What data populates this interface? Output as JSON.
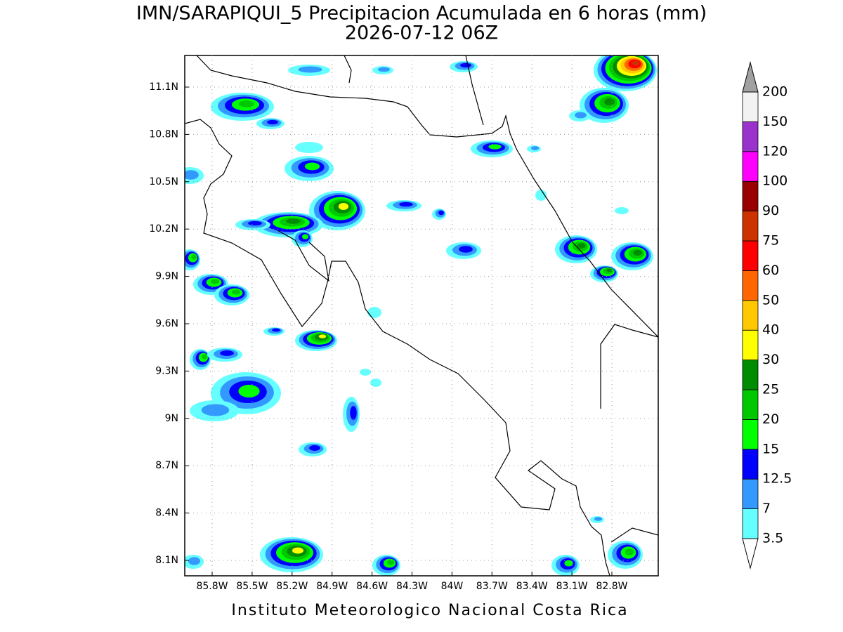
{
  "header": {
    "title": "IMN/SARAPIQUI_5 Precipitacion Acumulada en 6 horas (mm)",
    "subtitle": "2026-07-12 06Z"
  },
  "footer": "Instituto Meteorologico Nacional Costa Rica",
  "lon_labels": [
    "85.8W",
    "85.5W",
    "85.2W",
    "84.9W",
    "84.6W",
    "84.3W",
    "84W",
    "83.7W",
    "83.4W",
    "83.1W",
    "82.8W"
  ],
  "lat_labels": [
    "11.1N",
    "10.8N",
    "10.5N",
    "10.2N",
    "9.9N",
    "9.6N",
    "9.3N",
    "9N",
    "8.7N",
    "8.4N",
    "8.1N"
  ],
  "colorbar": {
    "levels": [
      "3.5",
      "7",
      "12.5",
      "15",
      "20",
      "25",
      "30",
      "40",
      "50",
      "60",
      "75",
      "90",
      "100",
      "120",
      "150",
      "200"
    ],
    "colors": [
      "#66ffff",
      "#3399ff",
      "#0000ff",
      "#00ff00",
      "#00c800",
      "#008c00",
      "#ffff00",
      "#ffc800",
      "#ff6600",
      "#ff0000",
      "#cc3300",
      "#990000",
      "#ff00ff",
      "#9933cc",
      "#f2f2f2"
    ]
  }
}
